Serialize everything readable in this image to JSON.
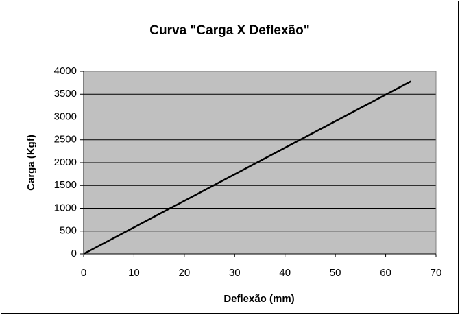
{
  "chart_data": {
    "type": "line",
    "title": "Curva \"Carga X Deflexão\"",
    "xlabel": "Deflexão (mm)",
    "ylabel": "Carga (Kgf)",
    "x": [
      0,
      65
    ],
    "series": [
      {
        "color": "#000000",
        "values": [
          0,
          3780
        ]
      }
    ],
    "xlim": [
      0,
      70
    ],
    "xticks": [
      0,
      10,
      20,
      30,
      40,
      50,
      60,
      70
    ],
    "ylim": [
      0,
      4000
    ],
    "yticks": [
      0,
      500,
      1000,
      1500,
      2000,
      2500,
      3000,
      3500,
      4000
    ],
    "grid": true
  }
}
